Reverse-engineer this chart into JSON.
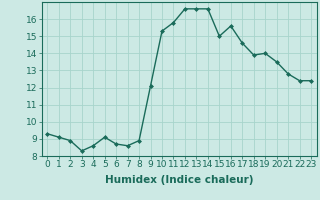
{
  "x": [
    0,
    1,
    2,
    3,
    4,
    5,
    6,
    7,
    8,
    9,
    10,
    11,
    12,
    13,
    14,
    15,
    16,
    17,
    18,
    19,
    20,
    21,
    22,
    23
  ],
  "y": [
    9.3,
    9.1,
    8.9,
    8.3,
    8.6,
    9.1,
    8.7,
    8.6,
    8.9,
    12.1,
    15.3,
    15.8,
    16.6,
    16.6,
    16.6,
    15.0,
    15.6,
    14.6,
    13.9,
    14.0,
    13.5,
    12.8,
    12.4,
    12.4
  ],
  "line_color": "#1a6b5a",
  "marker": "D",
  "marker_size": 2.0,
  "bg_color": "#cce9e4",
  "grid_color": "#a8d4cc",
  "xlabel": "Humidex (Indice chaleur)",
  "xlim": [
    -0.5,
    23.5
  ],
  "ylim": [
    8,
    17
  ],
  "yticks": [
    8,
    9,
    10,
    11,
    12,
    13,
    14,
    15,
    16
  ],
  "xticks": [
    0,
    1,
    2,
    3,
    4,
    5,
    6,
    7,
    8,
    9,
    10,
    11,
    12,
    13,
    14,
    15,
    16,
    17,
    18,
    19,
    20,
    21,
    22,
    23
  ],
  "xlabel_fontsize": 7.5,
  "tick_fontsize": 6.5,
  "line_width": 1.0
}
